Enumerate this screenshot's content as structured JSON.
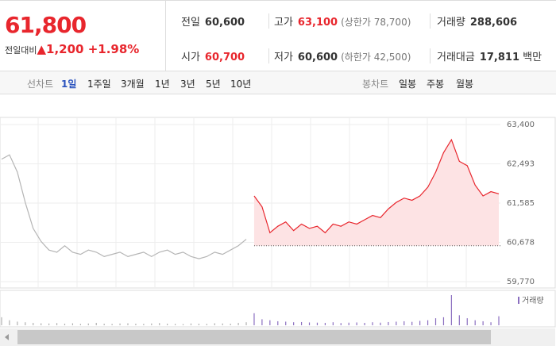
{
  "header": {
    "price": "61,800",
    "change_label": "전일대비",
    "change": "1,200",
    "change_pct": "+1.98%",
    "stats": [
      {
        "label": "전일",
        "value": "60,600"
      },
      {
        "label": "고가",
        "value": "63,100",
        "note": "(상한가 78,700)"
      },
      {
        "label": "거래량",
        "value": "288,606"
      },
      {
        "label": "시가",
        "value": "60,700"
      },
      {
        "label": "저가",
        "value": "60,600",
        "note": "(하한가 42,500)"
      },
      {
        "label": "거래대금",
        "value": "17,811",
        "unit": "백만"
      }
    ]
  },
  "tabs": {
    "left_label": "선차트",
    "left": [
      "1일",
      "1주일",
      "3개월",
      "1년",
      "3년",
      "5년",
      "10년"
    ],
    "right_label": "봉차트",
    "right": [
      "일봉",
      "주봉",
      "월봉"
    ]
  },
  "chart_data": {
    "type": "line",
    "ylim": [
      59770,
      63400
    ],
    "yticks": [
      {
        "value": 63400,
        "label": "63,400"
      },
      {
        "value": 62493,
        "label": "62,493"
      },
      {
        "value": 61585,
        "label": "61,585"
      },
      {
        "value": 60678,
        "label": "60,678"
      },
      {
        "value": 59770,
        "label": "59,770"
      }
    ],
    "grid": true,
    "reference": 60600,
    "series": [
      {
        "color": "#b5b5b5",
        "values": [
          62600,
          62700,
          62300,
          61600,
          61000,
          60700,
          60500,
          60450,
          60600,
          60450,
          60400,
          60500,
          60450,
          60350,
          60400,
          60450,
          60350,
          60400,
          60450,
          60350,
          60450,
          60500,
          60400,
          60450,
          60350,
          60300,
          60350,
          60450,
          60400,
          60500,
          60600,
          60750,
          null,
          null,
          null,
          null,
          null,
          null,
          null,
          null,
          null,
          null,
          null,
          null,
          null,
          null,
          null,
          null,
          null,
          null,
          null,
          null,
          null,
          null,
          null,
          null,
          null,
          null,
          null,
          null,
          null,
          null,
          null,
          null
        ]
      },
      {
        "color": "#e8262d",
        "fill": "#fde3e4",
        "values": [
          null,
          null,
          null,
          null,
          null,
          null,
          null,
          null,
          null,
          null,
          null,
          null,
          null,
          null,
          null,
          null,
          null,
          null,
          null,
          null,
          null,
          null,
          null,
          null,
          null,
          null,
          null,
          null,
          null,
          null,
          null,
          null,
          61750,
          61500,
          60900,
          61050,
          61150,
          60950,
          61100,
          61000,
          61050,
          60900,
          61100,
          61050,
          61150,
          61100,
          61200,
          61300,
          61250,
          61450,
          61600,
          61700,
          61650,
          61750,
          61950,
          62300,
          62750,
          63050,
          62550,
          62450,
          62000,
          61750,
          61850,
          61800
        ]
      }
    ],
    "volume": {
      "name": "거래량",
      "colors": [
        "#b0b0b0",
        "#8b6fc0"
      ],
      "values": [
        4000,
        2500,
        1800,
        1500,
        1200,
        1000,
        900,
        1100,
        800,
        1000,
        700,
        900,
        1200,
        800,
        700,
        900,
        1000,
        800,
        700,
        900,
        1100,
        800,
        700,
        600,
        900,
        800,
        700,
        1000,
        900,
        800,
        1200,
        1500,
        6000,
        3000,
        2500,
        2000,
        1800,
        1500,
        1600,
        1400,
        1300,
        1200,
        1500,
        1100,
        1300,
        1400,
        1200,
        1500,
        1300,
        1600,
        1800,
        2000,
        1700,
        2200,
        2500,
        3500,
        4000,
        15000,
        5000,
        3500,
        2500,
        2000,
        1500,
        4500
      ]
    }
  }
}
